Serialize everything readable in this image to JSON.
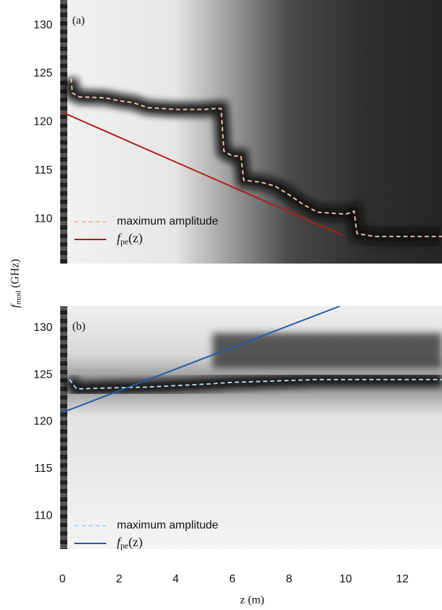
{
  "chart_data": [
    {
      "type": "line",
      "panel_label": "(a)",
      "xlim": [
        -0.08,
        13.4
      ],
      "ylim": [
        105.4,
        132.6
      ],
      "yticks": [
        110,
        115,
        120,
        125,
        130
      ],
      "series": [
        {
          "name": "maximum amplitude",
          "style": "dashed",
          "color": "#f4b8b0",
          "x": [
            0.3,
            0.35,
            0.6,
            1.5,
            2,
            2.5,
            3,
            4,
            5,
            5.4,
            5.6,
            5.7,
            6,
            6.3,
            6.4,
            7,
            7.5,
            8,
            8.5,
            9,
            10,
            10.3,
            10.4,
            11,
            13.4
          ],
          "values": [
            124.5,
            123,
            122.6,
            122.5,
            122.2,
            122,
            121.5,
            121.3,
            121.3,
            121.4,
            121.4,
            117,
            116.5,
            116.5,
            114,
            113.8,
            113.4,
            112.5,
            111.5,
            110.7,
            110.5,
            110.8,
            108.5,
            108.2,
            108.2
          ]
        },
        {
          "name": "f",
          "name_subscript": "pe",
          "name_argument": "(z)",
          "style": "solid",
          "color": "#b01c1c",
          "x": [
            0,
            9.9
          ],
          "values": [
            121,
            108.3
          ]
        }
      ]
    },
    {
      "type": "line",
      "panel_label": "(b)",
      "xlim": [
        -0.08,
        13.4
      ],
      "ylim": [
        106.5,
        132.3
      ],
      "yticks": [
        110,
        115,
        120,
        125,
        130
      ],
      "xticks": [
        0,
        2,
        4,
        6,
        8,
        10,
        12
      ],
      "series": [
        {
          "name": "maximum amplitude",
          "style": "dashed",
          "color": "#a8d8f0",
          "x": [
            0.25,
            0.5,
            1.5,
            3,
            5,
            6,
            7,
            9,
            12,
            13.4
          ],
          "values": [
            124.5,
            123.5,
            123.6,
            123.7,
            124,
            124.2,
            124.3,
            124.5,
            124.5,
            124.5
          ]
        },
        {
          "name": "f",
          "name_subscript": "pe",
          "name_argument": "(z)",
          "style": "solid",
          "color": "#1f5ba8",
          "x": [
            0,
            9.8
          ],
          "values": [
            121,
            132.3
          ]
        }
      ]
    }
  ],
  "xlabel": "z (m)",
  "ylabel": {
    "symbol": "f",
    "subscript": "mod",
    "unit": "(GHz)"
  }
}
